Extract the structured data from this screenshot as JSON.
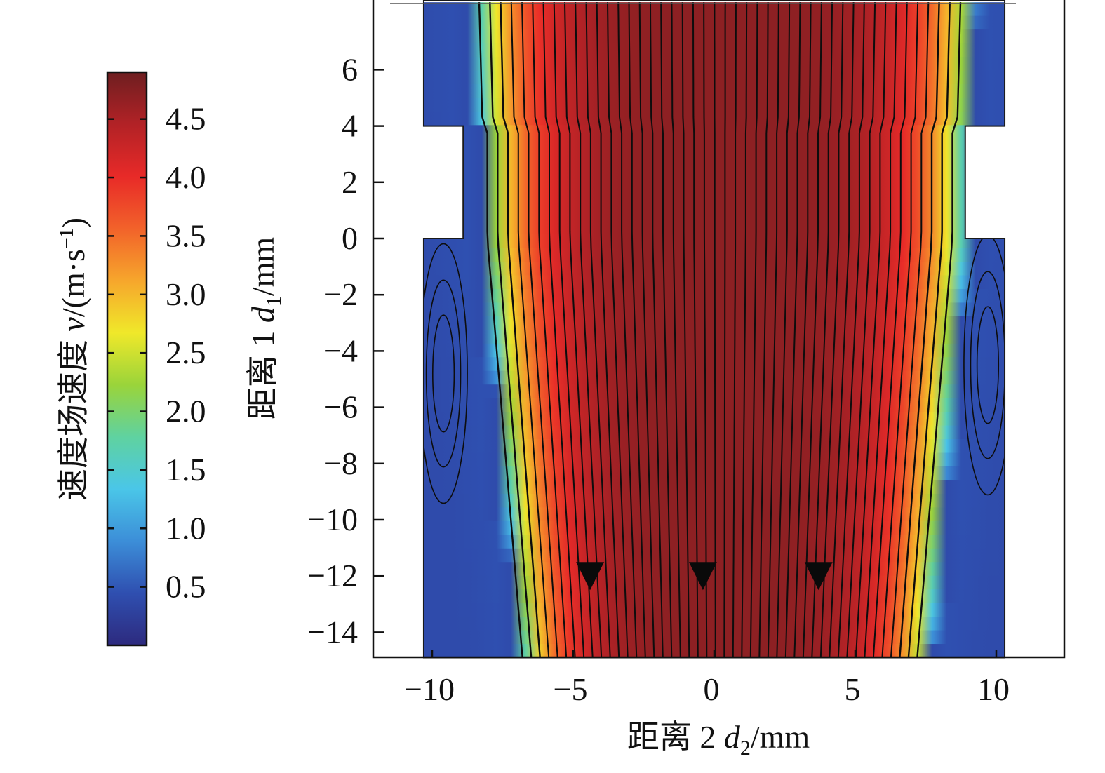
{
  "chart_data": {
    "type": "heatmap",
    "subtype": "velocity-field-streamline",
    "colorbar": {
      "label_main": "速度场速度 ",
      "label_var": "v",
      "label_unit_open": "/(m·s",
      "label_unit_exp": "−1",
      "label_unit_close": ")",
      "min": 0.0,
      "max": 4.9,
      "ticks": [
        0.5,
        1.0,
        1.5,
        2.0,
        2.5,
        3.0,
        3.5,
        4.0,
        4.5
      ],
      "tick_labels": [
        "0.5",
        "1.0",
        "1.5",
        "2.0",
        "2.5",
        "3.0",
        "3.5",
        "4.0",
        "4.5"
      ],
      "colors": [
        "#2d2a7e",
        "#2f4fb0",
        "#3c8ed8",
        "#4ac6e8",
        "#5fd2a0",
        "#9ad43a",
        "#f0e82a",
        "#f6a62c",
        "#f2622a",
        "#e82a28",
        "#b22226",
        "#6e1e20"
      ]
    },
    "xaxis": {
      "label_main": "距离 2 ",
      "label_var": "d",
      "label_sub": "2",
      "label_unit": "/mm",
      "range": [
        -12,
        12.5
      ],
      "ticks": [
        -10,
        -5,
        0,
        5,
        10
      ],
      "tick_labels": [
        "−10",
        "−5",
        "0",
        "5",
        "10"
      ]
    },
    "yaxis": {
      "label_main": "距离 1 ",
      "label_var": "d",
      "label_sub": "1",
      "label_unit": "/mm",
      "range": [
        -14.9,
        8.4
      ],
      "ticks": [
        6,
        4,
        2,
        0,
        -2,
        -4,
        -6,
        -8,
        -10,
        -12,
        -14
      ],
      "tick_labels": [
        "6",
        "4",
        "2",
        "0",
        "−2",
        "−4",
        "−6",
        "−8",
        "−10",
        "−12",
        "−14"
      ]
    },
    "geometry": {
      "outer_half_width": 10.3,
      "throat_half_width": 8.9,
      "throat_y_range": [
        0,
        4
      ],
      "bottom": -14.9,
      "top": 8.4
    },
    "field": {
      "core_speed": 4.7,
      "wall_speed": 0.4,
      "jet_half_width_top": 8.9,
      "jet_half_width_throat": 8.6,
      "jet_half_width_bottom": 7.3,
      "jet_center_shift": 0.4
    },
    "flow_direction_arrows": [
      {
        "x": -4.4,
        "y": -12,
        "direction": "down"
      },
      {
        "x": -0.4,
        "y": -12,
        "direction": "down"
      },
      {
        "x": 3.7,
        "y": -12,
        "direction": "down"
      }
    ],
    "recirculation_vortices": [
      {
        "x": -9.6,
        "y": -4.8,
        "side": "left"
      },
      {
        "x": 9.7,
        "y": -4.5,
        "side": "right"
      }
    ]
  }
}
